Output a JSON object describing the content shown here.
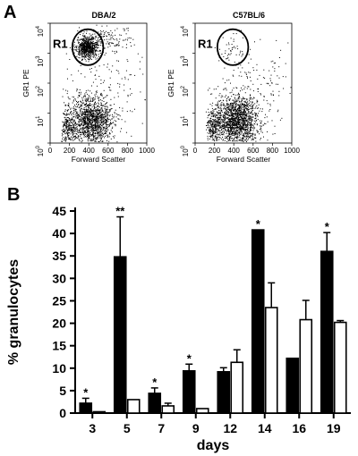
{
  "panel_a": {
    "letter": "A",
    "plots": [
      {
        "title": "DBA/2",
        "gate_label": "R1",
        "density": "high"
      },
      {
        "title": "C57BL/6",
        "gate_label": "R1",
        "density": "low"
      }
    ],
    "x_axis_label": "Forward Scatter",
    "y_axis_label": "GR1 PE",
    "x_ticks": [
      "0",
      "200",
      "400",
      "600",
      "800",
      "1000"
    ],
    "y_tick_exponents": [
      "0",
      "1",
      "2",
      "3",
      "4"
    ],
    "y_tick_base": "10"
  },
  "panel_b": {
    "letter": "B"
  },
  "chart_data": {
    "type": "bar",
    "categories": [
      "3",
      "5",
      "7",
      "9",
      "12",
      "14",
      "16",
      "19"
    ],
    "series": [
      {
        "fill": "#000000",
        "values": [
          2.2,
          34.8,
          4.4,
          9.4,
          9.2,
          40.8,
          12.2,
          36.0
        ],
        "errors": [
          1.1,
          8.9,
          1.2,
          1.5,
          0.9,
          0.0,
          0.0,
          4.2
        ]
      },
      {
        "fill": "#ffffff",
        "values": [
          0.3,
          3.0,
          1.6,
          1.0,
          11.3,
          23.5,
          20.8,
          20.2
        ],
        "errors": [
          0.0,
          0.0,
          0.6,
          0.0,
          2.8,
          5.5,
          4.3,
          0.4
        ]
      }
    ],
    "significance": [
      "*",
      "**",
      "*",
      "*",
      "",
      "*",
      "",
      "*"
    ],
    "xlabel": "days",
    "ylabel": "% granulocytes",
    "ylim": [
      0,
      45
    ],
    "yticks": [
      "0",
      "5",
      "10",
      "15",
      "20",
      "25",
      "30",
      "35",
      "40",
      "45"
    ],
    "grid": false
  }
}
